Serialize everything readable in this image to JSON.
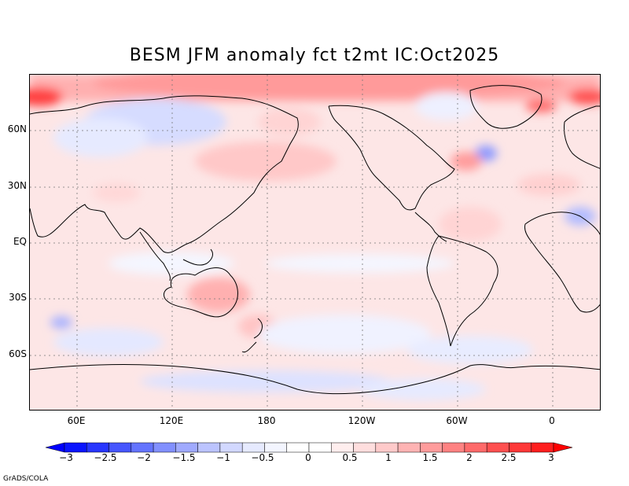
{
  "title": "BESM  JFM anomaly fct t2mt IC:Oct2025",
  "lat_labels": [
    "60N",
    "30N",
    "EQ",
    "30S",
    "60S"
  ],
  "lon_labels": [
    "60E",
    "120E",
    "180",
    "120W",
    "60W",
    "0"
  ],
  "colorbar": {
    "labels": [
      "−3",
      "−2.5",
      "−2",
      "−1.5",
      "−1",
      "−0.5",
      "0",
      "0.5",
      "1",
      "1.5",
      "2",
      "2.5",
      "3"
    ],
    "colors": [
      "#0a14ff",
      "#2836ff",
      "#4656ff",
      "#6474ff",
      "#8290ff",
      "#a0aaff",
      "#bcc4ff",
      "#d2d8ff",
      "#e6eaff",
      "#f3f5ff",
      "#ffffff",
      "#ffffff",
      "#ffeeee",
      "#ffdede",
      "#ffcaca",
      "#ffb4b4",
      "#ff9c9c",
      "#ff8282",
      "#ff6a6a",
      "#ff5050",
      "#ff3838",
      "#ff1e1e"
    ],
    "under_color": "#0000ff",
    "over_color": "#ff0000"
  },
  "credit": "GrADS/COLA"
}
